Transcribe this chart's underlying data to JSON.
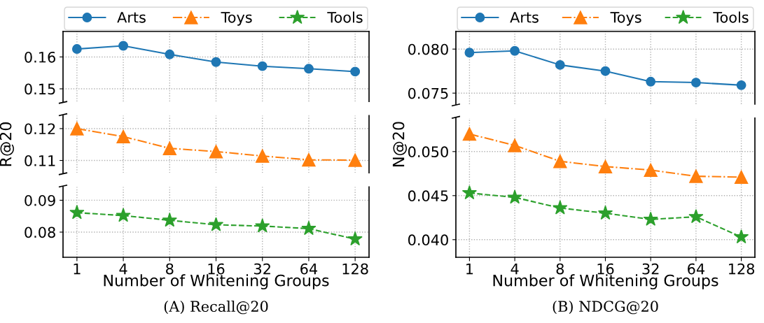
{
  "chart_data": [
    {
      "type": "line",
      "categories": [
        "1",
        "4",
        "8",
        "16",
        "32",
        "64",
        "128"
      ],
      "ylim": [
        0.146,
        0.168
      ],
      "yticks": [
        0.15,
        0.16
      ],
      "tick_labels": "y",
      "grid": true,
      "legend": "top",
      "series": [
        {
          "name": "Arts",
          "color": "#1f77b4",
          "marker": "circle",
          "line_style": "solid",
          "values": [
            0.1625,
            0.1635,
            0.1608,
            0.1584,
            0.1571,
            0.1563,
            0.1554
          ]
        }
      ]
    },
    {
      "type": "line",
      "categories": [
        "1",
        "4",
        "8",
        "16",
        "32",
        "64",
        "128"
      ],
      "ylim": [
        0.1061,
        0.1241
      ],
      "yticks": [
        0.11,
        0.12
      ],
      "tick_labels": "y",
      "grid": true,
      "legend": "top",
      "series": [
        {
          "name": "Toys",
          "color": "#ff7f0e",
          "marker": "triangle",
          "line_style": "dashdot",
          "values": [
            0.12,
            0.1175,
            0.1138,
            0.1128,
            0.1114,
            0.1102,
            0.1101
          ]
        }
      ]
    },
    {
      "type": "line",
      "categories": [
        "1",
        "4",
        "8",
        "16",
        "32",
        "64",
        "128"
      ],
      "ylim": [
        0.0721,
        0.0942
      ],
      "yticks": [
        0.08,
        0.09
      ],
      "grid": true,
      "legend": "top",
      "xlabel": "Number of Whitening Groups",
      "ylabel": "R@20",
      "annotations": [
        "(A) Recall@20"
      ],
      "series": [
        {
          "name": "Tools",
          "color": "#2ca02c",
          "marker": "star",
          "line_style": "dashed",
          "values": [
            0.0861,
            0.0852,
            0.0837,
            0.0823,
            0.0819,
            0.0811,
            0.0778
          ]
        }
      ]
    },
    {
      "type": "line",
      "categories": [
        "1",
        "4",
        "8",
        "16",
        "32",
        "64",
        "128"
      ],
      "ylim": [
        0.07375,
        0.082
      ],
      "yticks": [
        {
          "value": 0.075,
          "label": "0.075"
        },
        {
          "value": 0.08,
          "label": "0.080"
        }
      ],
      "tick_labels": "y",
      "grid": true,
      "legend": "top",
      "series": [
        {
          "name": "Arts",
          "color": "#1f77b4",
          "marker": "circle",
          "line_style": "solid",
          "values": [
            0.0796,
            0.0798,
            0.0782,
            0.0775,
            0.0763,
            0.0762,
            0.0759
          ]
        }
      ]
    },
    {
      "type": "line",
      "categories": [
        "1",
        "4",
        "8",
        "16",
        "32",
        "64",
        "128"
      ],
      "ylim": [
        0.038,
        0.0538
      ],
      "yticks": [
        {
          "value": 0.04,
          "label": "0.040"
        },
        {
          "value": 0.045,
          "label": "0.045"
        },
        {
          "value": 0.05,
          "label": "0.050"
        }
      ],
      "grid": true,
      "legend": "top",
      "xlabel": "Number of Whitening Groups",
      "ylabel": "N@20",
      "annotations": [
        "(B) NDCG@20"
      ],
      "series": [
        {
          "name": "Toys",
          "color": "#ff7f0e",
          "marker": "triangle",
          "line_style": "dashdot",
          "values": [
            0.052,
            0.0507,
            0.0489,
            0.0483,
            0.0479,
            0.0472,
            0.0471
          ]
        },
        {
          "name": "Tools",
          "color": "#2ca02c",
          "marker": "star",
          "line_style": "dashed",
          "values": [
            0.0453,
            0.0448,
            0.0436,
            0.043,
            0.0423,
            0.0426,
            0.0403
          ]
        }
      ]
    }
  ]
}
